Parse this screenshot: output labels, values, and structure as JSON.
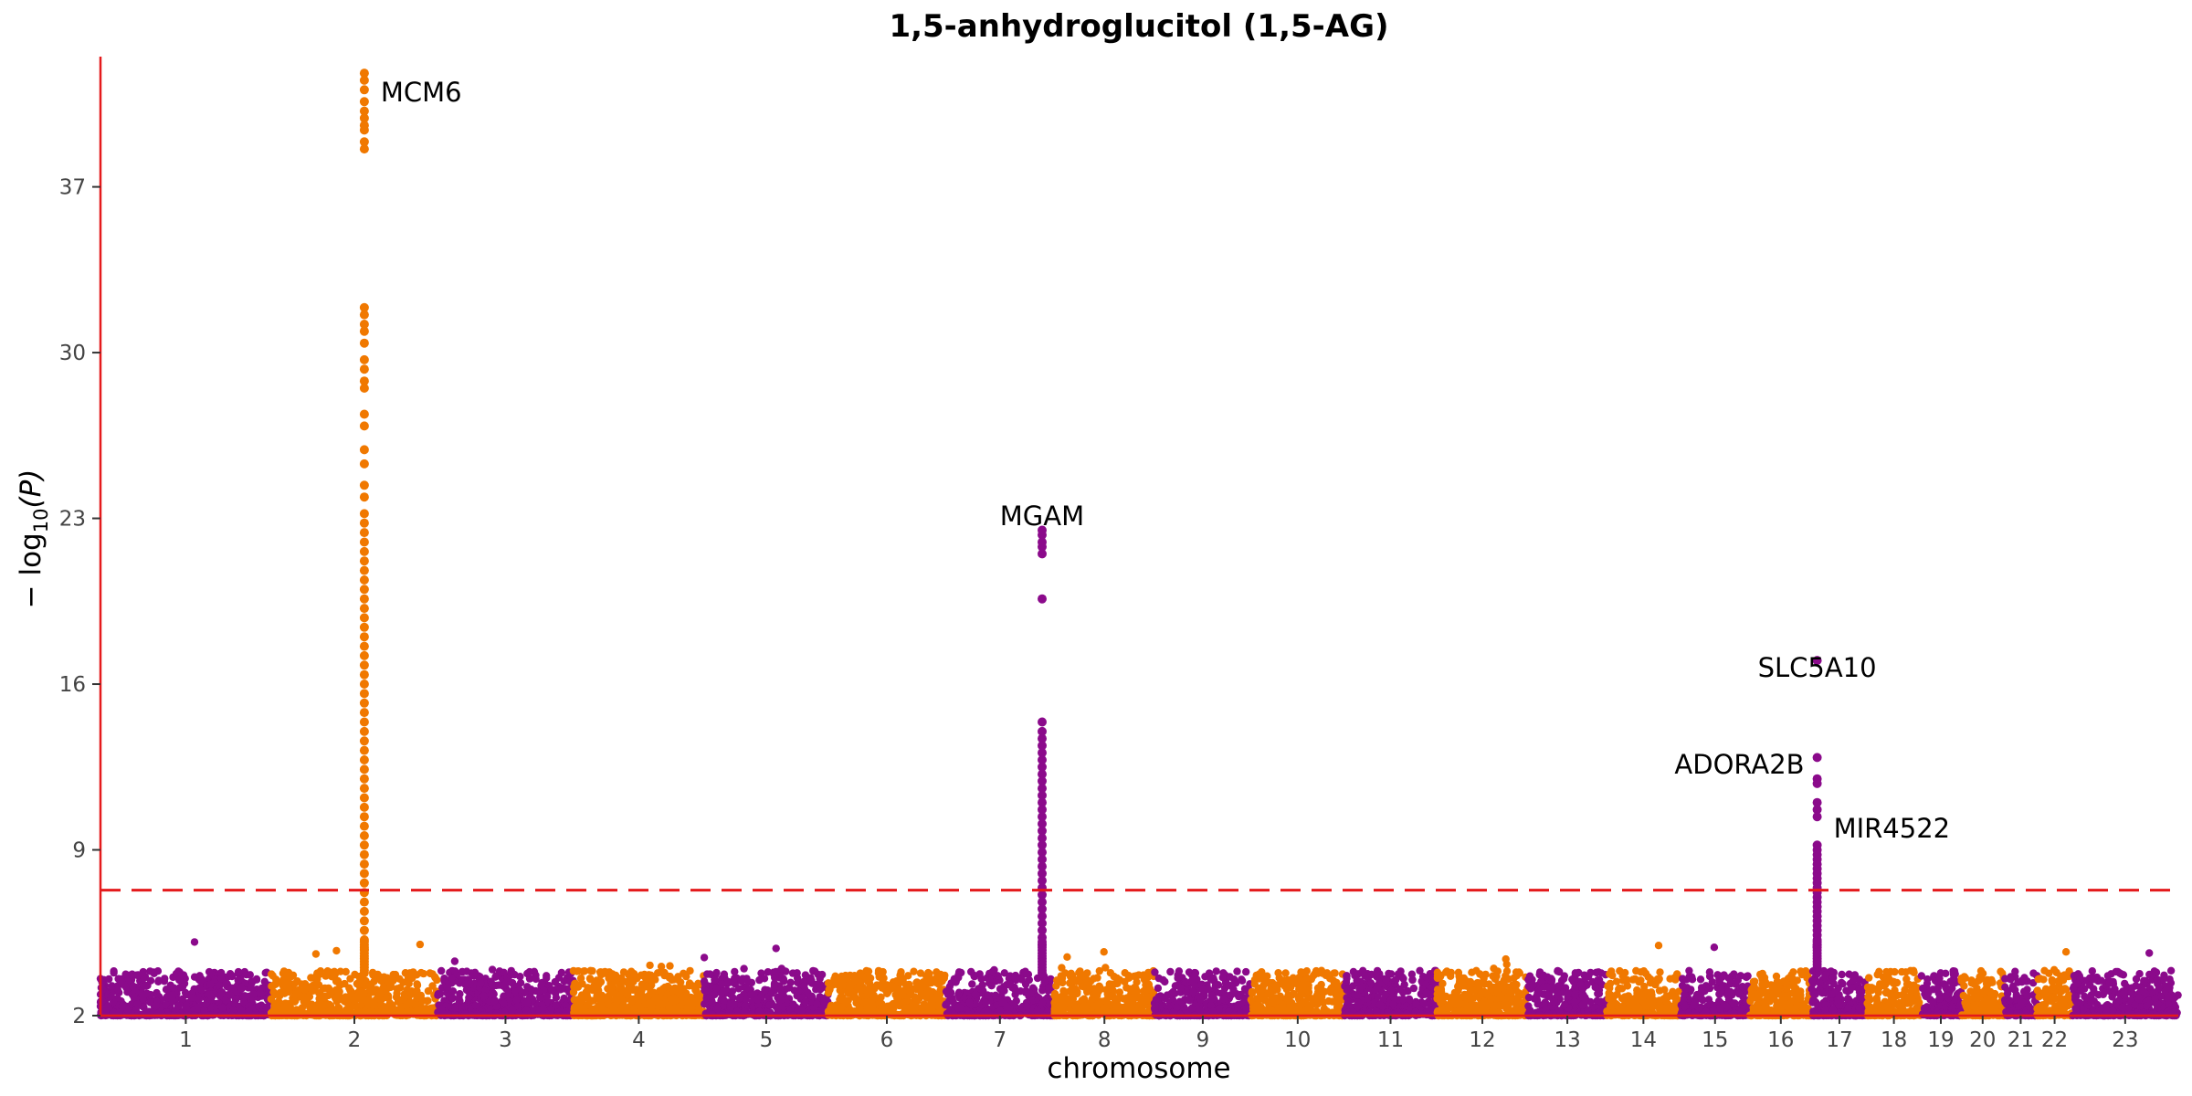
{
  "chart_data": {
    "type": "scatter",
    "subtype": "manhattan",
    "title": "1,5-anhydroglucitol (1,5-AG)",
    "xlabel": "chromosome",
    "ylabel_prefix": "− log",
    "ylabel_sub": "10",
    "ylabel_suffix": "(P)",
    "ylim": [
      2,
      42.5
    ],
    "yticks": [
      2,
      9,
      16,
      23,
      30,
      37
    ],
    "threshold": 7.3,
    "grid": false,
    "legend": "none",
    "colors": {
      "odd": "#8B0A8B",
      "even": "#F07800",
      "axis": "#E41A1C",
      "threshold": "#E41A1C",
      "text": "#222222"
    },
    "chromosomes": [
      {
        "label": "1",
        "length": 249
      },
      {
        "label": "2",
        "length": 243
      },
      {
        "label": "3",
        "length": 198
      },
      {
        "label": "4",
        "length": 191
      },
      {
        "label": "5",
        "length": 181
      },
      {
        "label": "6",
        "length": 171
      },
      {
        "label": "7",
        "length": 159
      },
      {
        "label": "8",
        "length": 146
      },
      {
        "label": "9",
        "length": 141
      },
      {
        "label": "10",
        "length": 136
      },
      {
        "label": "11",
        "length": 135
      },
      {
        "label": "12",
        "length": 133
      },
      {
        "label": "13",
        "length": 115
      },
      {
        "label": "14",
        "length": 107
      },
      {
        "label": "15",
        "length": 102
      },
      {
        "label": "16",
        "length": 90
      },
      {
        "label": "17",
        "length": 81
      },
      {
        "label": "18",
        "length": 78
      },
      {
        "label": "19",
        "length": 59
      },
      {
        "label": "20",
        "length": 63
      },
      {
        "label": "21",
        "length": 48
      },
      {
        "label": "22",
        "length": 51
      },
      {
        "label": "23",
        "length": 155
      }
    ],
    "peaks": [
      {
        "chrom": "2",
        "pos": 136,
        "values": [
          41.8,
          41.5,
          41.1,
          40.6,
          40.2,
          39.9,
          39.6,
          39.4,
          38.9,
          38.6,
          31.9,
          31.6,
          31.2,
          30.9,
          30.4,
          29.7,
          29.3,
          28.8,
          28.5,
          27.4,
          26.9,
          25.9,
          25.3,
          24.4,
          23.9,
          23.2,
          22.8,
          22.4,
          22.0,
          21.6,
          21.2,
          20.8,
          20.4,
          20.0,
          19.6,
          19.2,
          18.8,
          18.4,
          18.0,
          17.6,
          17.2,
          16.8,
          16.4,
          16.0,
          15.6,
          15.2,
          14.8,
          14.4,
          14.0,
          13.6,
          13.2,
          12.8,
          12.4,
          12.0,
          11.6,
          11.2,
          10.8,
          10.4,
          10.0,
          9.6,
          9.2,
          8.8,
          8.4,
          8.0,
          7.6,
          7.2,
          6.8,
          6.4,
          6.0,
          5.6,
          5.2,
          4.8
        ]
      },
      {
        "chrom": "7",
        "pos": 141,
        "values": [
          22.5,
          22.3,
          22.0,
          21.8,
          21.5,
          19.6,
          14.4,
          14.0,
          13.7,
          13.4,
          13.1,
          12.8,
          12.5,
          12.2,
          11.9,
          11.6,
          11.3,
          11.0,
          10.7,
          10.4,
          10.1,
          9.8,
          9.5,
          9.2,
          8.9,
          8.6,
          8.3,
          8.0,
          7.7,
          7.4,
          7.1,
          6.8,
          6.5,
          6.2,
          5.9,
          5.6,
          5.3,
          5.0
        ]
      },
      {
        "chrom": "17",
        "pos": 8,
        "values": [
          17.0,
          12.9,
          12.0,
          11.8,
          11.0,
          10.7,
          10.4,
          9.2,
          9.0,
          8.8,
          8.6,
          8.4,
          8.2,
          8.0,
          7.8,
          7.6,
          7.4,
          7.2,
          7.0,
          6.8,
          6.6,
          6.4,
          6.2,
          6.0,
          5.8,
          5.6,
          5.4,
          5.2,
          5.0
        ]
      }
    ],
    "annotations": [
      {
        "label": "MCM6",
        "chrom": "2",
        "pos": 136,
        "y": 41.0,
        "anchor": "start",
        "dx": 18
      },
      {
        "label": "MGAM",
        "chrom": "7",
        "pos": 141,
        "y": 23.1,
        "anchor": "middle",
        "dx": 0
      },
      {
        "label": "SLC5A10",
        "chrom": "17",
        "pos": 8,
        "y": 16.7,
        "anchor": "middle",
        "dx": 0
      },
      {
        "label": "ADORA2B",
        "chrom": "17",
        "pos": 8,
        "y": 12.6,
        "anchor": "end",
        "dx": -14
      },
      {
        "label": "MIR4522",
        "chrom": "17",
        "pos": 8,
        "y": 9.9,
        "anchor": "start",
        "dx": 18
      }
    ]
  }
}
